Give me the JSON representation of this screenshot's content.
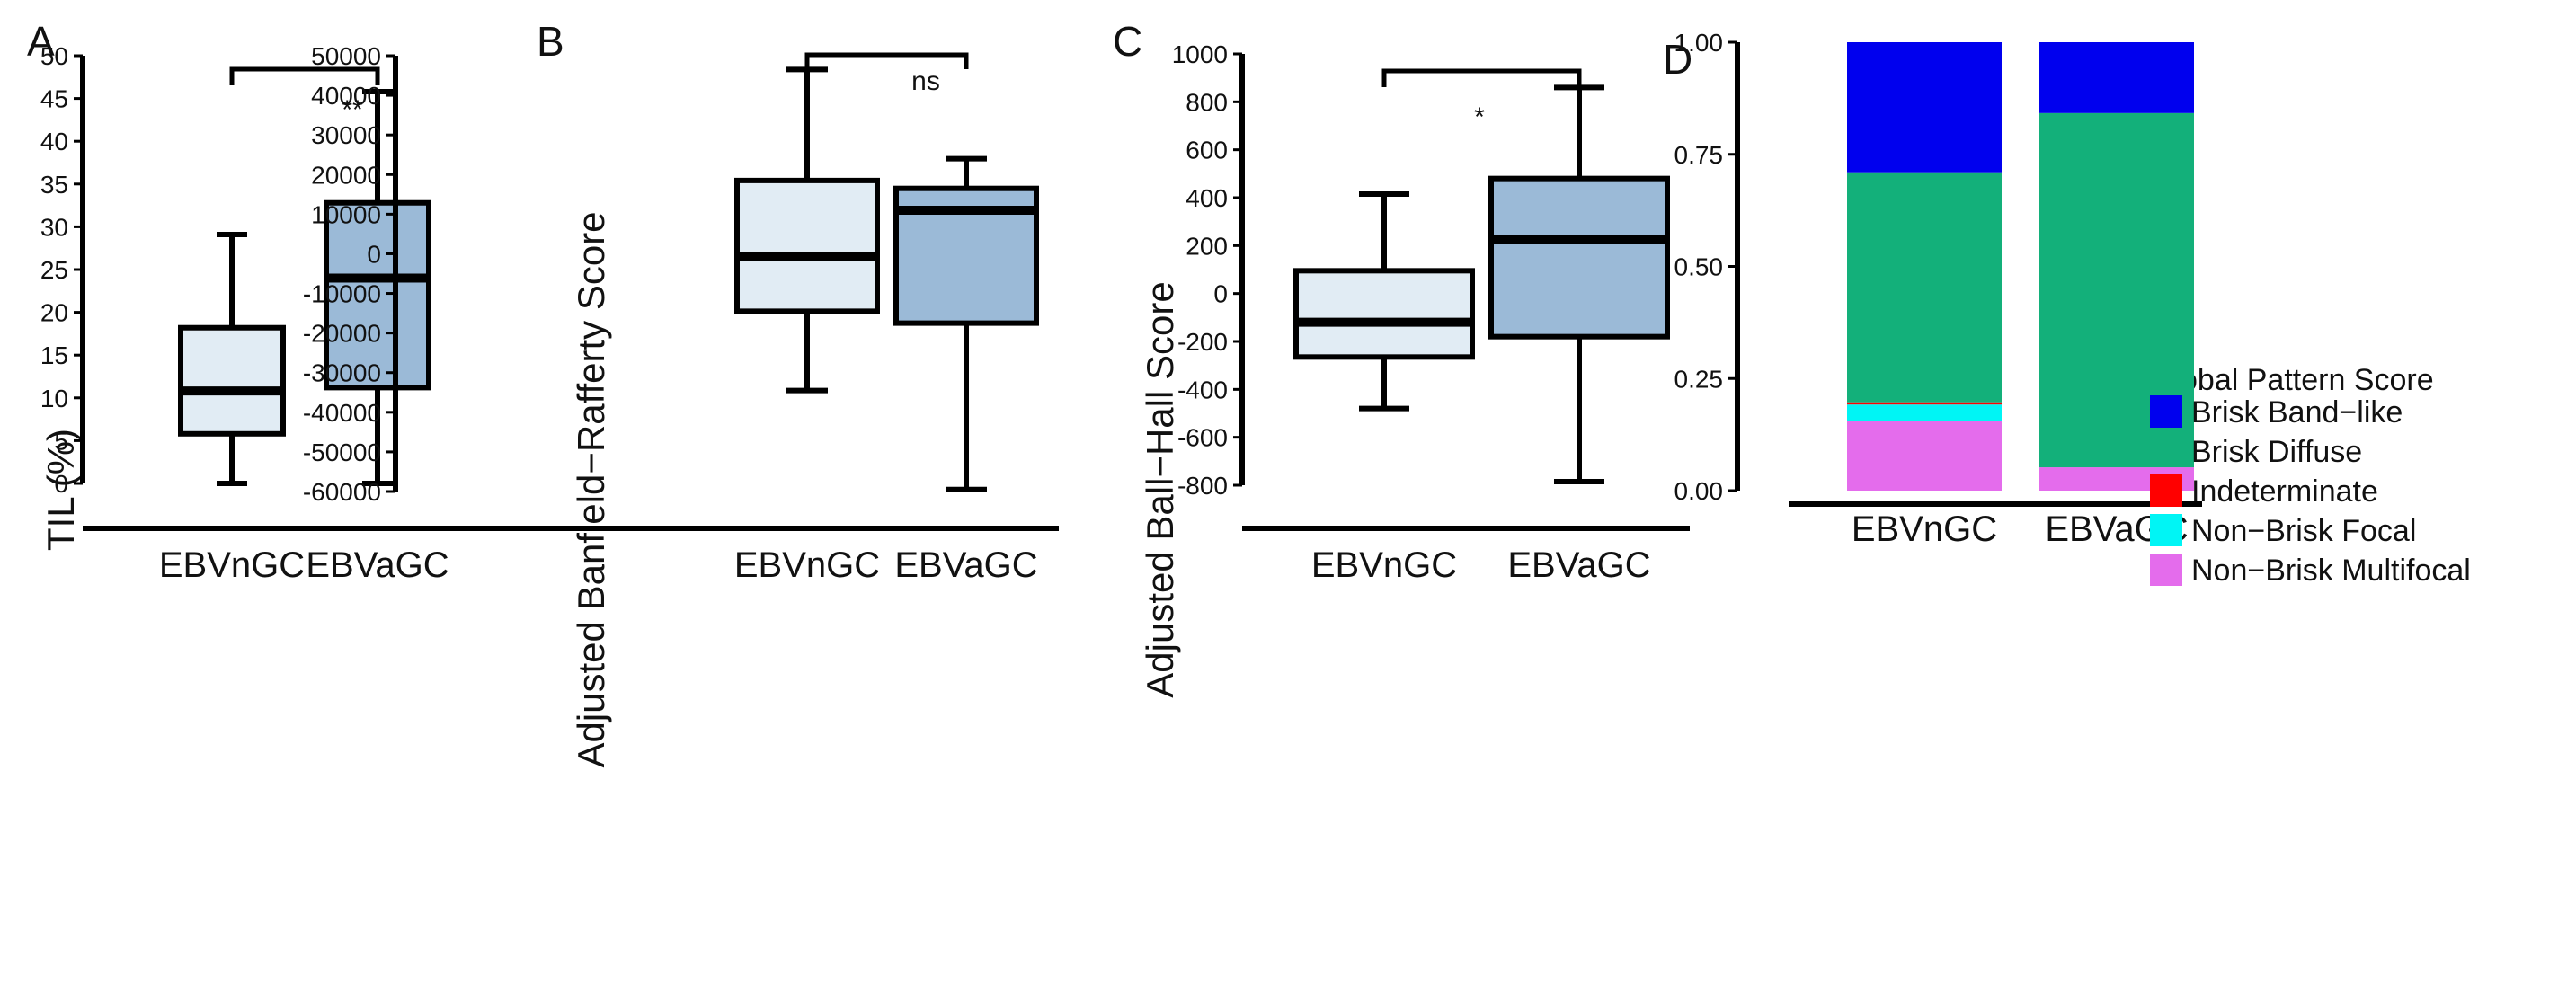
{
  "chart_data": [
    {
      "panel": "A",
      "type": "boxplot",
      "ylabel": "TIL (%)",
      "ylim": [
        0,
        50
      ],
      "yticks": [
        "0",
        "5",
        "10",
        "15",
        "20",
        "25",
        "30",
        "35",
        "40",
        "45",
        "50"
      ],
      "categories": [
        "EBVnGC",
        "EBVaGC"
      ],
      "boxes": [
        {
          "name": "EBVnGC",
          "min": 0,
          "q1": 5.8,
          "median": 10.8,
          "q3": 18.2,
          "max": 29.1,
          "color": "#e1ecf4"
        },
        {
          "name": "EBVaGC",
          "min": 0,
          "q1": 11.2,
          "median": 24.0,
          "q3": 32.8,
          "max": 45.8,
          "color": "#9bbad7"
        }
      ],
      "significance": "**"
    },
    {
      "panel": "B",
      "type": "boxplot",
      "ylabel": "Adjusted Banfield−Rafferty Score",
      "ylim": [
        -60000,
        50000
      ],
      "yticks": [
        "-60000",
        "-50000",
        "-40000",
        "-30000",
        "-20000",
        "-10000",
        "0",
        "10000",
        "20000",
        "30000",
        "40000",
        "50000"
      ],
      "categories": [
        "EBVnGC",
        "EBVaGC"
      ],
      "boxes": [
        {
          "name": "EBVnGC",
          "min": -34500,
          "q1": -14500,
          "median": -700,
          "q3": 18500,
          "max": 46500,
          "color": "#e1ecf4"
        },
        {
          "name": "EBVaGC",
          "min": -59500,
          "q1": -17500,
          "median": 11000,
          "q3": 16500,
          "max": 24000,
          "color": "#9bbad7"
        }
      ],
      "significance": "ns"
    },
    {
      "panel": "C",
      "type": "boxplot",
      "ylabel": "Adjusted Ball−Hall Score",
      "ylim": [
        -800,
        1000
      ],
      "yticks": [
        "-800",
        "-600",
        "-400",
        "-200",
        "0",
        "200",
        "400",
        "600",
        "800",
        "1000"
      ],
      "categories": [
        "EBVnGC",
        "EBVaGC"
      ],
      "boxes": [
        {
          "name": "EBVnGC",
          "min": -480,
          "q1": -265,
          "median": -120,
          "q3": 95,
          "max": 415,
          "color": "#e1ecf4"
        },
        {
          "name": "EBVaGC",
          "min": -785,
          "q1": -180,
          "median": 225,
          "q3": 480,
          "max": 860,
          "color": "#9bbad7"
        }
      ],
      "significance": "*"
    },
    {
      "panel": "D",
      "type": "bar",
      "stacked": true,
      "ylim": [
        0,
        1
      ],
      "yticks": [
        "0.00",
        "0.25",
        "0.50",
        "0.75",
        "1.00"
      ],
      "categories": [
        "EBVnGC",
        "EBVaGC"
      ],
      "legend_title": "Global Pattern Score",
      "series": [
        {
          "name": "Non−Brisk Multifocal",
          "color": "#e46cec",
          "values": [
            0.155,
            0.052
          ]
        },
        {
          "name": "Non−Brisk Focal",
          "color": "#00f5f5",
          "values": [
            0.037,
            0.0
          ]
        },
        {
          "name": "Indeterminate",
          "color": "#ff0000",
          "values": [
            0.005,
            0.0
          ]
        },
        {
          "name": "Brisk Diffuse",
          "color": "#13b07a",
          "values": [
            0.513,
            0.79
          ]
        },
        {
          "name": "Brisk Band−like",
          "color": "#0000ee",
          "values": [
            0.29,
            0.158
          ]
        }
      ],
      "legend_order": [
        "Brisk Band−like",
        "Brisk Diffuse",
        "Indeterminate",
        "Non−Brisk Focal",
        "Non−Brisk Multifocal"
      ]
    }
  ]
}
